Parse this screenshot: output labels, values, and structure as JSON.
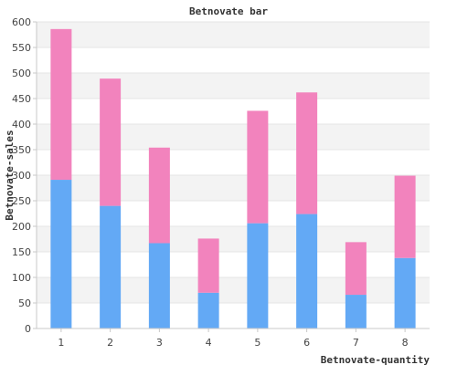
{
  "chart_data": {
    "type": "bar",
    "stacked": true,
    "title": "Betnovate bar",
    "xlabel": "Betnovate-quantity",
    "ylabel": "Betnovate-sales",
    "categories": [
      "1",
      "2",
      "3",
      "4",
      "5",
      "6",
      "7",
      "8"
    ],
    "series": [
      {
        "values": [
          291,
          240,
          167,
          70,
          206,
          224,
          66,
          138
        ],
        "color": "#63a9f5"
      },
      {
        "values": [
          295,
          249,
          187,
          106,
          220,
          238,
          103,
          161
        ],
        "color": "#f283bd"
      }
    ],
    "ylim": [
      0,
      600
    ],
    "yticks": [
      0,
      50,
      100,
      150,
      200,
      250,
      300,
      350,
      400,
      450,
      500,
      550,
      600
    ],
    "grid": true,
    "legend": "none"
  }
}
